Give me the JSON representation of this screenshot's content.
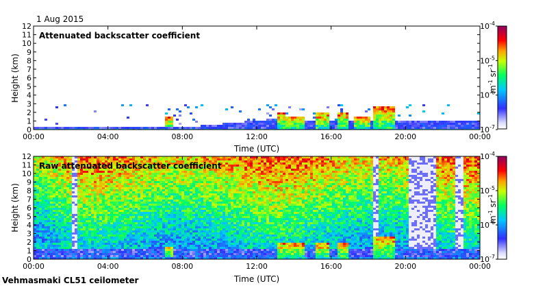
{
  "date_label": "1 Aug 2015",
  "footer_label": "Vehmasmaki CL51 ceilometer",
  "chart_data": [
    {
      "type": "heatmap",
      "title": "Attenuated backscatter coefficient",
      "xlabel": "Time (UTC)",
      "ylabel": "Height (km)",
      "x_ticks": [
        "00:00",
        "04:00",
        "08:00",
        "12:00",
        "16:00",
        "20:00",
        "00:00"
      ],
      "y_ticks": [
        "0",
        "1",
        "2",
        "3",
        "4",
        "5",
        "6",
        "7",
        "8",
        "9",
        "10",
        "11",
        "12"
      ],
      "xlim_hours": [
        0,
        24
      ],
      "ylim_km": [
        0,
        12
      ],
      "colorbar": {
        "unit_base": "m",
        "unit_exp": "-1",
        "unit_base2": "sr",
        "unit_exp2": "-1",
        "ticks": [
          {
            "base": "10",
            "exp": "-4"
          },
          {
            "base": "10",
            "exp": "-5"
          },
          {
            "base": "10",
            "exp": "-6"
          },
          {
            "base": "10",
            "exp": "-7"
          }
        ],
        "range_log10": [
          -7,
          -4
        ]
      },
      "features": {
        "surface_layer_top_km": 0.25,
        "clouds": [
          {
            "start_hour": 7.1,
            "end_hour": 7.5,
            "base_km": 0.2,
            "top_km": 1.4
          },
          {
            "start_hour": 13.1,
            "end_hour": 13.5,
            "base_km": 0.1,
            "top_km": 2.0
          },
          {
            "start_hour": 13.5,
            "end_hour": 14.6,
            "base_km": 0.1,
            "top_km": 1.6
          },
          {
            "start_hour": 15.1,
            "end_hour": 15.9,
            "base_km": 0.1,
            "top_km": 1.9
          },
          {
            "start_hour": 16.3,
            "end_hour": 17.0,
            "base_km": 0.1,
            "top_km": 1.9
          },
          {
            "start_hour": 17.3,
            "end_hour": 18.1,
            "base_km": 0.1,
            "top_km": 1.5
          },
          {
            "start_hour": 18.3,
            "end_hour": 19.4,
            "base_km": 0.1,
            "top_km": 2.6
          }
        ]
      }
    },
    {
      "type": "heatmap",
      "title": "Raw attenuated backscatter coefficient",
      "xlabel": "Time (UTC)",
      "ylabel": "Height (km)",
      "x_ticks": [
        "00:00",
        "04:00",
        "08:00",
        "12:00",
        "16:00",
        "20:00",
        "00:00"
      ],
      "y_ticks": [
        "0",
        "1",
        "2",
        "3",
        "4",
        "5",
        "6",
        "7",
        "8",
        "9",
        "10",
        "11",
        "12"
      ],
      "xlim_hours": [
        0,
        24
      ],
      "ylim_km": [
        0,
        12
      ],
      "colorbar": {
        "unit_base": "m",
        "unit_exp": "-1",
        "unit_base2": "sr",
        "unit_exp2": "-1",
        "ticks": [
          {
            "base": "10",
            "exp": "-4"
          },
          {
            "base": "10",
            "exp": "-5"
          },
          {
            "base": "10",
            "exp": "-6"
          },
          {
            "base": "10",
            "exp": "-7"
          }
        ],
        "range_log10": [
          -7,
          -4
        ]
      },
      "features": {
        "rain_gaps_hours": [
          [
            18.2,
            18.6
          ],
          [
            20.2,
            21.6
          ],
          [
            22.7,
            23.1
          ],
          [
            2.0,
            2.4
          ]
        ],
        "clouds": [
          {
            "start_hour": 7.1,
            "end_hour": 7.5,
            "base_km": 0.2,
            "top_km": 1.4
          },
          {
            "start_hour": 13.1,
            "end_hour": 14.6,
            "base_km": 0.1,
            "top_km": 2.0
          },
          {
            "start_hour": 15.1,
            "end_hour": 15.9,
            "base_km": 0.1,
            "top_km": 1.9
          },
          {
            "start_hour": 16.3,
            "end_hour": 17.0,
            "base_km": 0.1,
            "top_km": 1.9
          },
          {
            "start_hour": 18.3,
            "end_hour": 19.4,
            "base_km": 0.1,
            "top_km": 2.6
          }
        ]
      }
    }
  ]
}
